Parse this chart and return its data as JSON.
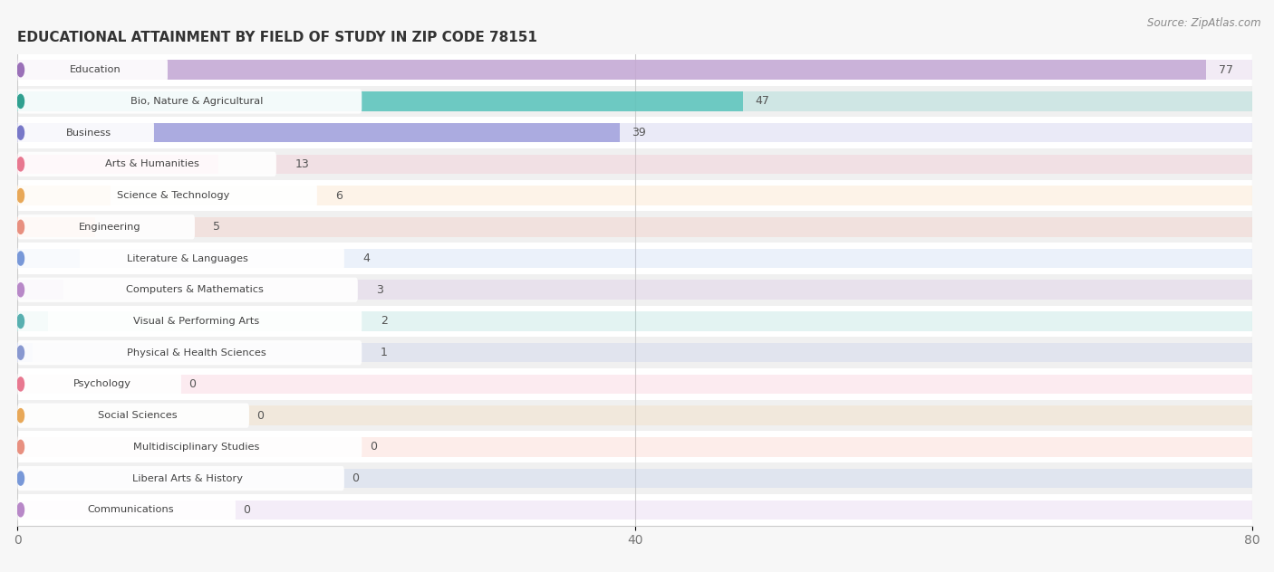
{
  "title": "EDUCATIONAL ATTAINMENT BY FIELD OF STUDY IN ZIP CODE 78151",
  "source": "Source: ZipAtlas.com",
  "categories": [
    "Education",
    "Bio, Nature & Agricultural",
    "Business",
    "Arts & Humanities",
    "Science & Technology",
    "Engineering",
    "Literature & Languages",
    "Computers & Mathematics",
    "Visual & Performing Arts",
    "Physical & Health Sciences",
    "Psychology",
    "Social Sciences",
    "Multidisciplinary Studies",
    "Liberal Arts & History",
    "Communications"
  ],
  "values": [
    77,
    47,
    39,
    13,
    6,
    5,
    4,
    3,
    2,
    1,
    0,
    0,
    0,
    0,
    0
  ],
  "bar_colors": [
    "#c4a8d4",
    "#5cc4bc",
    "#a0a0dc",
    "#f5a8bc",
    "#f8cc98",
    "#f8b0a0",
    "#a8c0ec",
    "#d0b0e0",
    "#80ccc8",
    "#b0bce8",
    "#f5a8bc",
    "#f8cc98",
    "#f8b0a0",
    "#a8c0ec",
    "#d0b0e0"
  ],
  "label_dot_colors": [
    "#9a70b8",
    "#30a090",
    "#7878c8",
    "#e87890",
    "#e8a858",
    "#e89080",
    "#7898d8",
    "#b888c8",
    "#58b0b0",
    "#8898d0",
    "#e87890",
    "#e8a858",
    "#e89080",
    "#7898d8",
    "#b888c8"
  ],
  "bg_color": "#f7f7f7",
  "row_bg_even": "#ffffff",
  "row_bg_odd": "#f0f0f0",
  "xlim": [
    0,
    80
  ],
  "xticks": [
    0,
    40,
    80
  ],
  "bar_alpha": 0.5,
  "full_bar_alpha": 0.22
}
